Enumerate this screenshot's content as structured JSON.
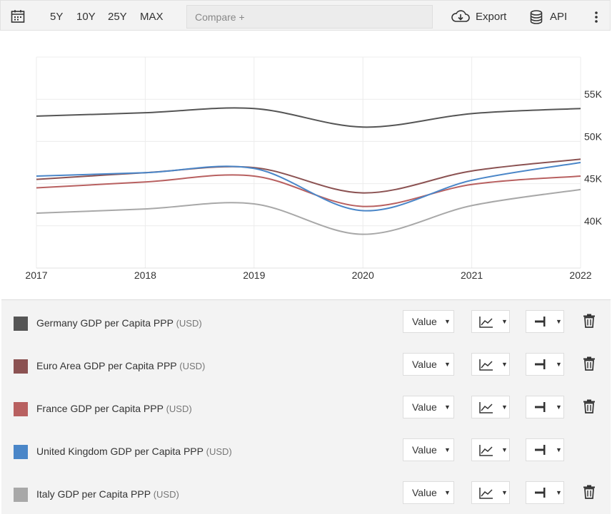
{
  "toolbar": {
    "ranges": [
      "5Y",
      "10Y",
      "25Y",
      "MAX"
    ],
    "compare_placeholder": "Compare +",
    "export_label": "Export",
    "api_label": "API"
  },
  "chart_data": {
    "type": "line",
    "x": [
      2017,
      2018,
      2019,
      2020,
      2021,
      2022
    ],
    "xlim": [
      2017,
      2022
    ],
    "ylim": [
      35000,
      60000
    ],
    "y_ticks": [
      40000,
      45000,
      50000,
      55000
    ],
    "y_tick_labels": [
      "40K",
      "45K",
      "50K",
      "55K"
    ],
    "x_tick_labels": [
      "2017",
      "2018",
      "2019",
      "2020",
      "2021",
      "2022"
    ],
    "grid": true,
    "series": [
      {
        "name": "Germany GDP per Capita PPP",
        "color": "#555555",
        "values": [
          53000,
          53400,
          53900,
          51700,
          53300,
          53900
        ]
      },
      {
        "name": "Euro Area GDP per Capita PPP",
        "color": "#8b5252",
        "values": [
          45500,
          46300,
          46900,
          43900,
          46500,
          47900
        ]
      },
      {
        "name": "France GDP per Capita PPP",
        "color": "#b86060",
        "values": [
          44500,
          45200,
          45900,
          42300,
          44900,
          45900
        ]
      },
      {
        "name": "United Kingdom GDP per Capita PPP",
        "color": "#4a86c8",
        "values": [
          45900,
          46300,
          46800,
          41800,
          45400,
          47500
        ]
      },
      {
        "name": "Italy GDP per Capita PPP",
        "color": "#a8a8a8",
        "values": [
          41500,
          42000,
          42600,
          39000,
          42400,
          44300
        ]
      }
    ]
  },
  "legend": {
    "rows": [
      {
        "label": "Germany GDP per Capita PPP",
        "unit": "(USD)",
        "color": "#555555",
        "mode": "Value",
        "deletable": true
      },
      {
        "label": "Euro Area GDP per Capita PPP",
        "unit": "(USD)",
        "color": "#8b5252",
        "mode": "Value",
        "deletable": true
      },
      {
        "label": "France GDP per Capita PPP",
        "unit": "(USD)",
        "color": "#b86060",
        "mode": "Value",
        "deletable": true
      },
      {
        "label": "United Kingdom GDP per Capita PPP",
        "unit": "(USD)",
        "color": "#4a86c8",
        "mode": "Value",
        "deletable": false
      },
      {
        "label": "Italy GDP per Capita PPP",
        "unit": "(USD)",
        "color": "#a8a8a8",
        "mode": "Value",
        "deletable": true
      }
    ]
  }
}
